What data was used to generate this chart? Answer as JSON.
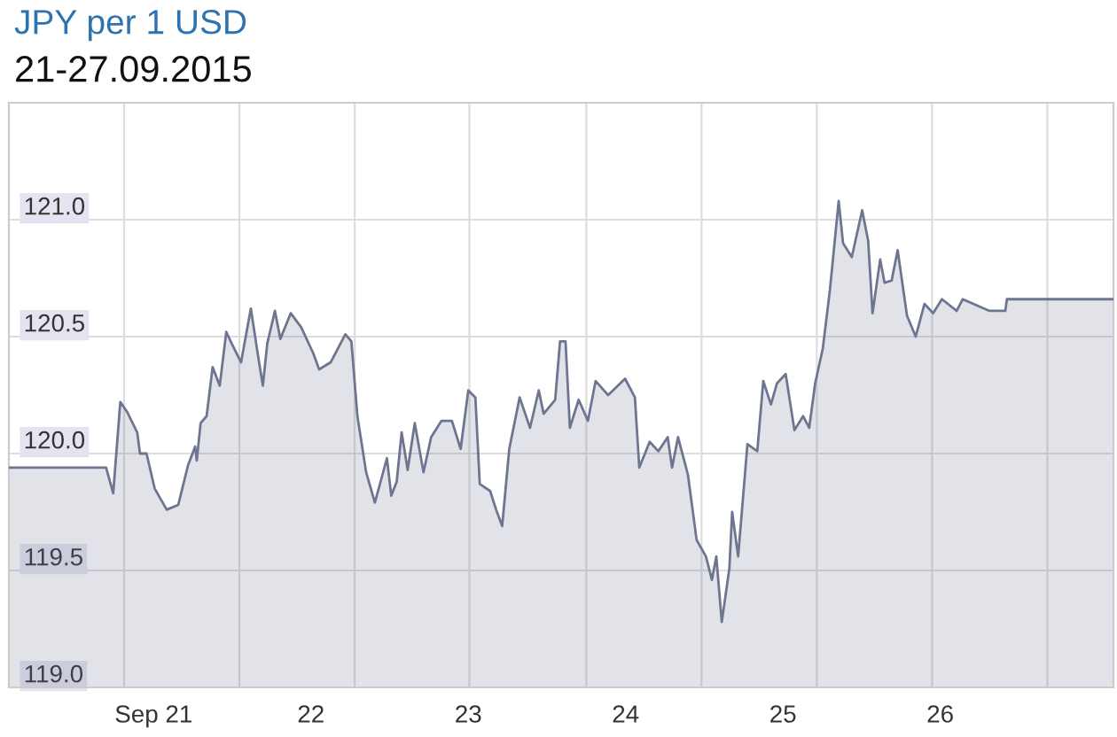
{
  "chart_data": {
    "type": "area",
    "title": "JPY per 1 USD",
    "subtitle": "21-27.09.2015",
    "x": [
      "2015-09-20T01:55",
      "2015-09-20T16:45",
      "2015-09-20T17:50",
      "2015-09-20T18:55",
      "2015-09-20T19:55",
      "2015-09-20T21:30",
      "2015-09-20T21:55",
      "2015-09-20T22:55",
      "2015-09-21T00:10",
      "2015-09-21T02:00",
      "2015-09-21T03:45",
      "2015-09-21T05:15",
      "2015-09-21T06:20",
      "2015-09-21T06:35",
      "2015-09-21T07:10",
      "2015-09-21T08:05",
      "2015-09-21T09:00",
      "2015-09-21T10:05",
      "2015-09-21T11:05",
      "2015-09-21T11:55",
      "2015-09-21T13:20",
      "2015-09-21T14:50",
      "2015-09-21T15:55",
      "2015-09-21T16:40",
      "2015-09-21T17:20",
      "2015-09-21T18:30",
      "2015-09-21T19:20",
      "2015-09-21T20:55",
      "2015-09-21T22:30",
      "2015-09-22T00:20",
      "2015-09-22T01:15",
      "2015-09-22T03:00",
      "2015-09-22T05:15",
      "2015-09-22T06:10",
      "2015-09-22T07:05",
      "2015-09-22T08:25",
      "2015-09-22T09:45",
      "2015-09-22T10:55",
      "2015-09-22T11:35",
      "2015-09-22T12:15",
      "2015-09-22T13:05",
      "2015-09-22T13:50",
      "2015-09-22T14:45",
      "2015-09-22T15:50",
      "2015-09-22T17:10",
      "2015-09-22T18:20",
      "2015-09-22T19:55",
      "2015-09-22T21:30",
      "2015-09-22T22:50",
      "2015-09-23T00:00",
      "2015-09-23T01:05",
      "2015-09-23T01:45",
      "2015-09-23T03:20",
      "2015-09-23T04:15",
      "2015-09-23T05:10",
      "2015-09-23T06:15",
      "2015-09-23T07:50",
      "2015-09-23T09:25",
      "2015-09-23T10:45",
      "2015-09-23T11:30",
      "2015-09-23T13:15",
      "2015-09-23T14:00",
      "2015-09-23T14:50",
      "2015-09-23T15:30",
      "2015-09-23T16:50",
      "2015-09-23T18:15",
      "2015-09-23T19:25",
      "2015-09-23T21:20",
      "2015-09-23T23:55",
      "2015-09-24T01:25",
      "2015-09-24T02:05",
      "2015-09-24T03:40",
      "2015-09-24T05:00",
      "2015-09-24T06:25",
      "2015-09-24T07:05",
      "2015-09-24T08:00",
      "2015-09-24T09:30",
      "2015-09-24T10:50",
      "2015-09-24T12:15",
      "2015-09-24T13:10",
      "2015-09-24T13:50",
      "2015-09-24T14:40",
      "2015-09-24T15:50",
      "2015-09-24T16:15",
      "2015-09-24T17:10",
      "2015-09-24T18:35",
      "2015-09-24T20:05",
      "2015-09-24T21:00",
      "2015-09-24T22:10",
      "2015-09-24T23:05",
      "2015-09-25T00:25",
      "2015-09-25T01:45",
      "2015-09-25T03:05",
      "2015-09-25T04:00",
      "2015-09-25T04:55",
      "2015-09-25T06:05",
      "2015-09-25T07:10",
      "2015-09-25T08:30",
      "2015-09-25T09:10",
      "2015-09-25T10:30",
      "2015-09-25T12:05",
      "2015-09-25T13:00",
      "2015-09-25T13:40",
      "2015-09-25T14:50",
      "2015-09-25T15:30",
      "2015-09-25T16:35",
      "2015-09-25T17:30",
      "2015-09-25T18:55",
      "2015-09-25T20:15",
      "2015-09-25T21:35",
      "2015-09-25T22:55",
      "2015-09-26T00:15",
      "2015-09-26T02:30",
      "2015-09-26T03:25",
      "2015-09-26T07:30",
      "2015-09-26T09:55",
      "2015-09-26T10:10",
      "2015-09-27T02:25"
    ],
    "series": [
      {
        "color": "#6e7590",
        "values": [
          119.94,
          119.94,
          119.83,
          120.22,
          120.18,
          120.09,
          120.0,
          120.0,
          119.85,
          119.76,
          119.78,
          119.95,
          120.03,
          119.97,
          120.13,
          120.16,
          120.37,
          120.29,
          120.52,
          120.47,
          120.39,
          120.62,
          120.42,
          120.29,
          120.47,
          120.61,
          120.49,
          120.6,
          120.54,
          120.43,
          120.36,
          120.39,
          120.51,
          120.48,
          120.16,
          119.92,
          119.79,
          119.91,
          119.98,
          119.82,
          119.88,
          120.09,
          119.93,
          120.13,
          119.92,
          120.07,
          120.14,
          120.14,
          120.02,
          120.27,
          120.24,
          119.87,
          119.84,
          119.76,
          119.69,
          120.02,
          120.24,
          120.11,
          120.27,
          120.17,
          120.23,
          120.48,
          120.48,
          120.11,
          120.23,
          120.14,
          120.31,
          120.25,
          120.32,
          120.24,
          119.94,
          120.05,
          120.01,
          120.07,
          119.94,
          120.07,
          119.91,
          119.63,
          119.56,
          119.46,
          119.56,
          119.28,
          119.51,
          119.75,
          119.56,
          120.04,
          120.01,
          120.31,
          120.21,
          120.3,
          120.34,
          120.1,
          120.16,
          120.11,
          120.3,
          120.45,
          120.7,
          121.08,
          120.9,
          120.84,
          121.04,
          120.91,
          120.6,
          120.83,
          120.73,
          120.74,
          120.87,
          120.59,
          120.5,
          120.64,
          120.6,
          120.66,
          120.61,
          120.66,
          120.61,
          120.61,
          120.66,
          120.66
        ]
      }
    ],
    "xlim": [
      "2015-09-20T01:55",
      "2015-09-27T02:25"
    ],
    "xticks": [
      {
        "value": "2015-09-21",
        "label": "Sep 21"
      },
      {
        "value": "2015-09-22",
        "label": "22"
      },
      {
        "value": "2015-09-23",
        "label": "23"
      },
      {
        "value": "2015-09-24",
        "label": "24"
      },
      {
        "value": "2015-09-25",
        "label": "25"
      },
      {
        "value": "2015-09-26",
        "label": "26"
      },
      {
        "value": "2015-09-20T19:30",
        "label": null
      },
      {
        "value": "2015-09-21T13:05",
        "label": null
      },
      {
        "value": "2015-09-22T06:40",
        "label": null
      },
      {
        "value": "2015-09-23T00:10",
        "label": null
      },
      {
        "value": "2015-09-23T18:00",
        "label": null
      },
      {
        "value": "2015-09-24T11:35",
        "label": null
      },
      {
        "value": "2015-09-25T05:10",
        "label": null
      },
      {
        "value": "2015-09-25T22:45",
        "label": null
      },
      {
        "value": "2015-09-26T16:20",
        "label": null
      }
    ],
    "ylim": [
      119.0,
      121.5
    ],
    "yticks": [
      {
        "value": 119.0,
        "label": "119.0"
      },
      {
        "value": 119.5,
        "label": "119.5"
      },
      {
        "value": 120.0,
        "label": "120.0"
      },
      {
        "value": 120.5,
        "label": "120.5"
      },
      {
        "value": 121.0,
        "label": "121.0"
      }
    ],
    "grid": true
  }
}
